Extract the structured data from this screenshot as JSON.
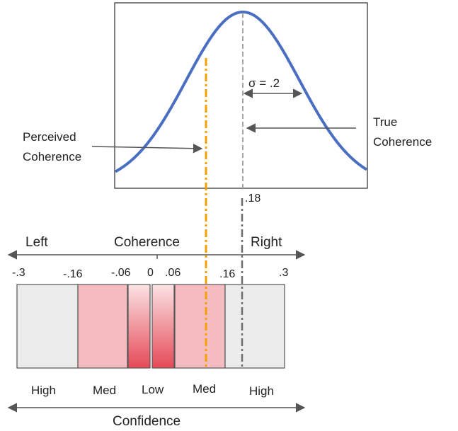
{
  "distribution": {
    "sigma_label": "σ = .2",
    "true_coherence_label": [
      "True",
      "Coherence"
    ],
    "perceived_coherence_label": [
      "Perceived",
      "Coherence"
    ],
    "true_value_label": ".18"
  },
  "axis": {
    "left_label": "Left",
    "center_label": "Coherence",
    "right_label": "Right",
    "tick_labels": [
      "-.3",
      "-.16",
      "-.06",
      "0",
      ".06",
      ".16",
      ".3"
    ]
  },
  "confidence": {
    "labels": [
      "High",
      "Med",
      "Low",
      "Med",
      "High"
    ],
    "axis_label": "Confidence"
  },
  "colors": {
    "curve": "#4a6fc2",
    "perceived_line": "#f4a000",
    "true_line": "#808080",
    "high_band": "#ececec",
    "med_band": "#f4bcc0",
    "low_band_top": "#fbe3e4",
    "low_band_bottom": "#e54a58"
  }
}
